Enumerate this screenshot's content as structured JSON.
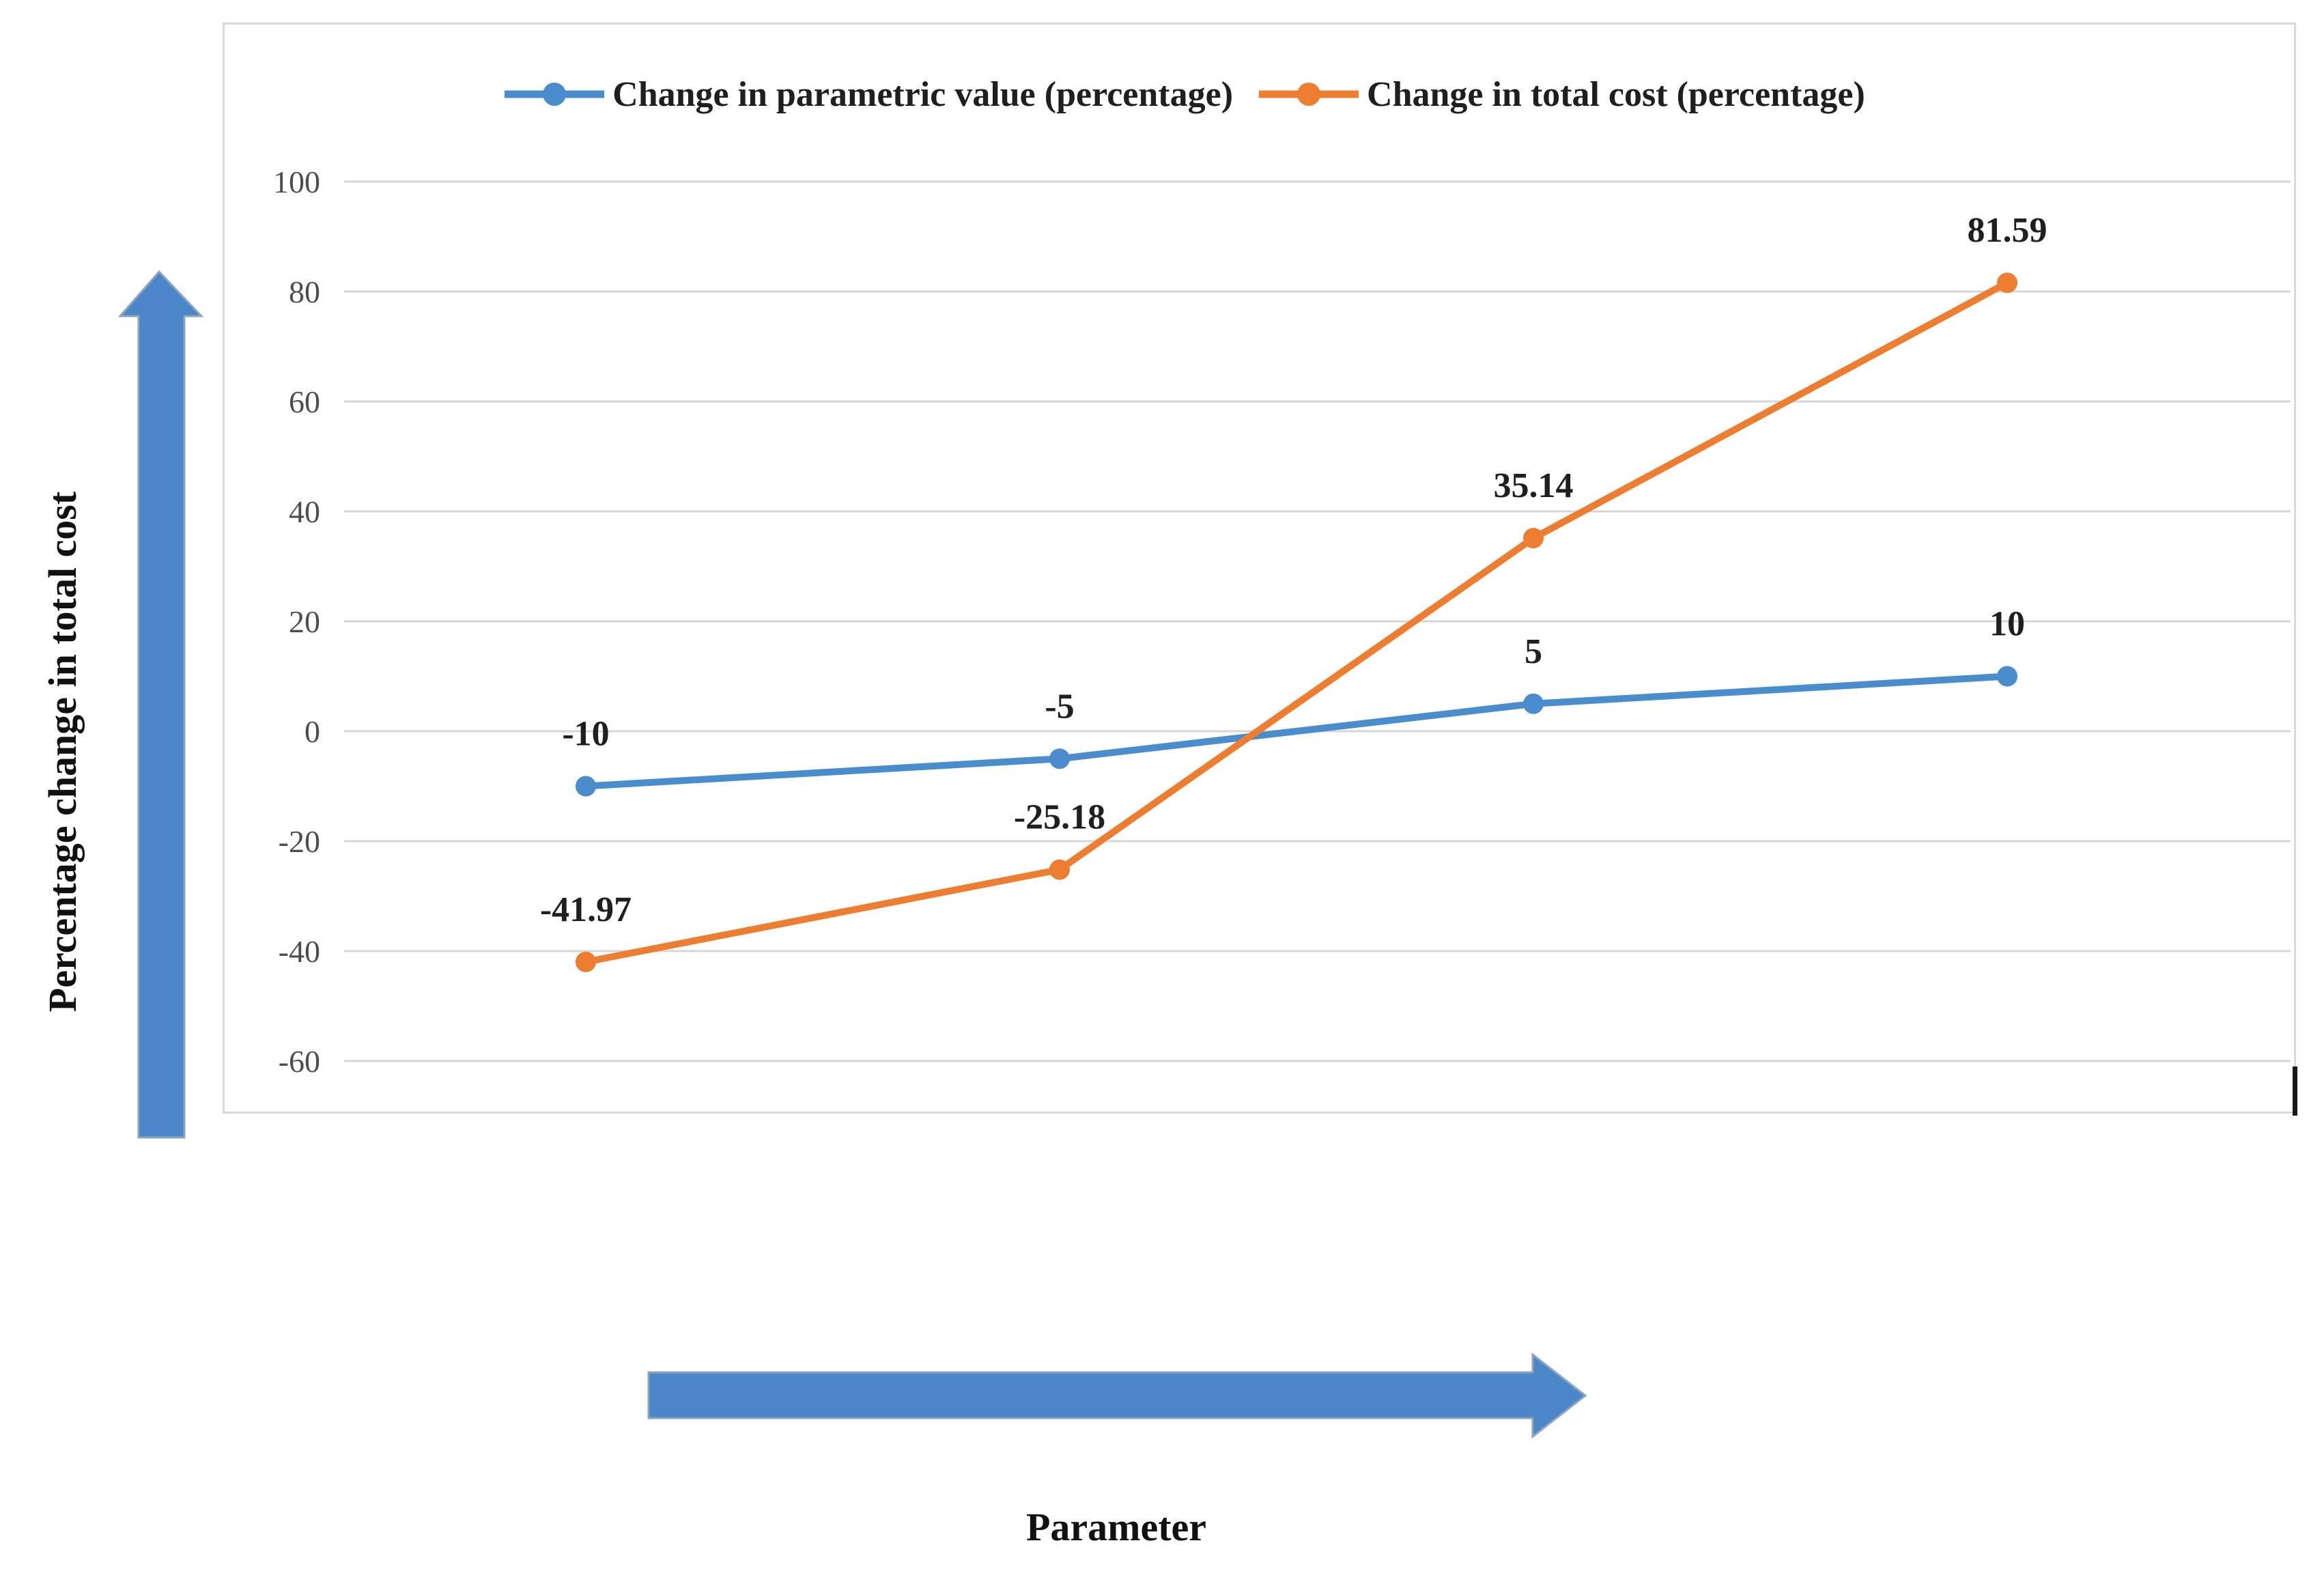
{
  "chart_data": {
    "type": "line",
    "title": "",
    "x": [
      1,
      2,
      3,
      4
    ],
    "series": [
      {
        "name": "Change in parametric value (percentage)",
        "color": "#4a8dcd",
        "values": [
          -10,
          -5,
          5,
          10
        ],
        "labels": [
          "-10",
          "-5",
          "5",
          "10"
        ]
      },
      {
        "name": "Change in total cost (percentage)",
        "color": "#ed7d31",
        "values": [
          -41.97,
          -25.18,
          35.14,
          81.59
        ],
        "labels": [
          "-41.97",
          "-25.18",
          "35.14",
          "81.59"
        ]
      }
    ],
    "yticks": [
      100,
      80,
      60,
      40,
      20,
      0,
      -20,
      -40,
      -60
    ],
    "ylim": [
      -60,
      100
    ],
    "grid": true,
    "grid_color": "#d6d6d6",
    "tick_color": "#4d4d4d",
    "label_color": "#1f1f1f",
    "legend_position": "top",
    "xlabel": "Parameter",
    "ylabel": "Percentage change in total cost",
    "arrow_color": "#4a86c8",
    "arrow_edge_color": "#8aa5bd"
  }
}
